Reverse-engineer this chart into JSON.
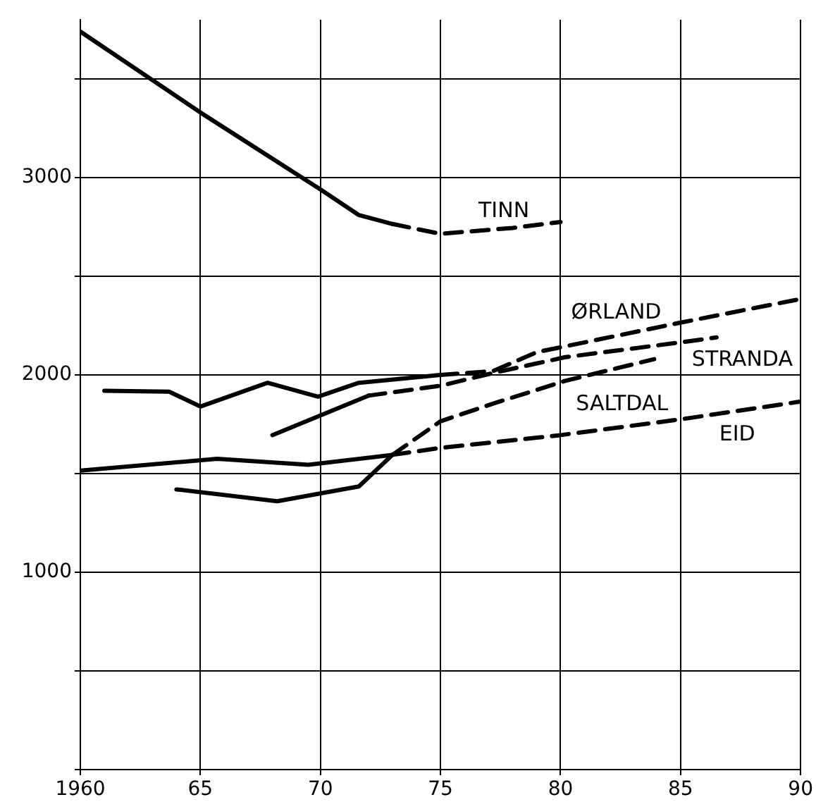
{
  "chart_data": {
    "type": "line",
    "xlim": [
      1960,
      1990
    ],
    "ylim": [
      0,
      3800
    ],
    "xticks": [
      1960,
      {
        "value": 1965,
        "label": "65"
      },
      {
        "value": 1970,
        "label": "70"
      },
      {
        "value": 1975,
        "label": "75"
      },
      {
        "value": 1980,
        "label": "80"
      },
      {
        "value": 1985,
        "label": "85"
      },
      {
        "value": 1990,
        "label": "90"
      }
    ],
    "yticks": [
      {
        "value": 0,
        "label": null
      },
      {
        "value": 500,
        "label": null
      },
      1000,
      {
        "value": 1500,
        "label": null
      },
      2000,
      {
        "value": 2500,
        "label": null
      },
      3000,
      {
        "value": 3500,
        "label": null
      }
    ],
    "grid": true,
    "legend": false,
    "marker": "none",
    "series": [
      {
        "color": "#000000",
        "line_style": "solid",
        "x": [
          1960,
          1965,
          1970,
          1971.6,
          1973
        ],
        "values": [
          3740,
          3330,
          2940,
          2810,
          2765
        ]
      },
      {
        "name": "TINN",
        "color": "#000000",
        "line_style": "dashed",
        "x": [
          1973,
          1975,
          1978,
          1980
        ],
        "values": [
          2765,
          2715,
          2745,
          2775
        ]
      },
      {
        "color": "#000000",
        "line_style": "solid",
        "x": [
          1961,
          1963.7,
          1965,
          1967.8,
          1969.9,
          1971.6,
          1975
        ],
        "values": [
          1920,
          1915,
          1840,
          1960,
          1890,
          1960,
          2000
        ]
      },
      {
        "name": "ØRLAND",
        "color": "#000000",
        "line_style": "dashed",
        "x": [
          1975,
          1977.2,
          1979,
          1985,
          1990
        ],
        "values": [
          2000,
          2020,
          2115,
          2265,
          2385
        ]
      },
      {
        "color": "#000000",
        "line_style": "solid",
        "x": [
          1968,
          1972
        ],
        "values": [
          1695,
          1895
        ]
      },
      {
        "name": "STRANDA",
        "color": "#000000",
        "line_style": "dashed",
        "x": [
          1972,
          1975,
          1977.2,
          1980.2,
          1985,
          1986.5
        ],
        "values": [
          1895,
          1945,
          2010,
          2090,
          2165,
          2190
        ]
      },
      {
        "color": "#000000",
        "line_style": "solid",
        "x": [
          1964,
          1968.2,
          1971.6,
          1973
        ],
        "values": [
          1420,
          1360,
          1435,
          1595
        ]
      },
      {
        "name": "SALTDAL",
        "color": "#000000",
        "line_style": "dashed",
        "x": [
          1973,
          1975,
          1977.2,
          1980.2,
          1983.9
        ],
        "values": [
          1595,
          1765,
          1855,
          1970,
          2080
        ]
      },
      {
        "color": "#000000",
        "line_style": "solid",
        "x": [
          1960,
          1965.7,
          1969.5,
          1973
        ],
        "values": [
          1515,
          1575,
          1545,
          1595
        ]
      },
      {
        "name": "EID",
        "color": "#000000",
        "line_style": "dashed",
        "x": [
          1973,
          1975,
          1980,
          1985,
          1990
        ],
        "values": [
          1595,
          1630,
          1695,
          1775,
          1865
        ]
      }
    ]
  }
}
